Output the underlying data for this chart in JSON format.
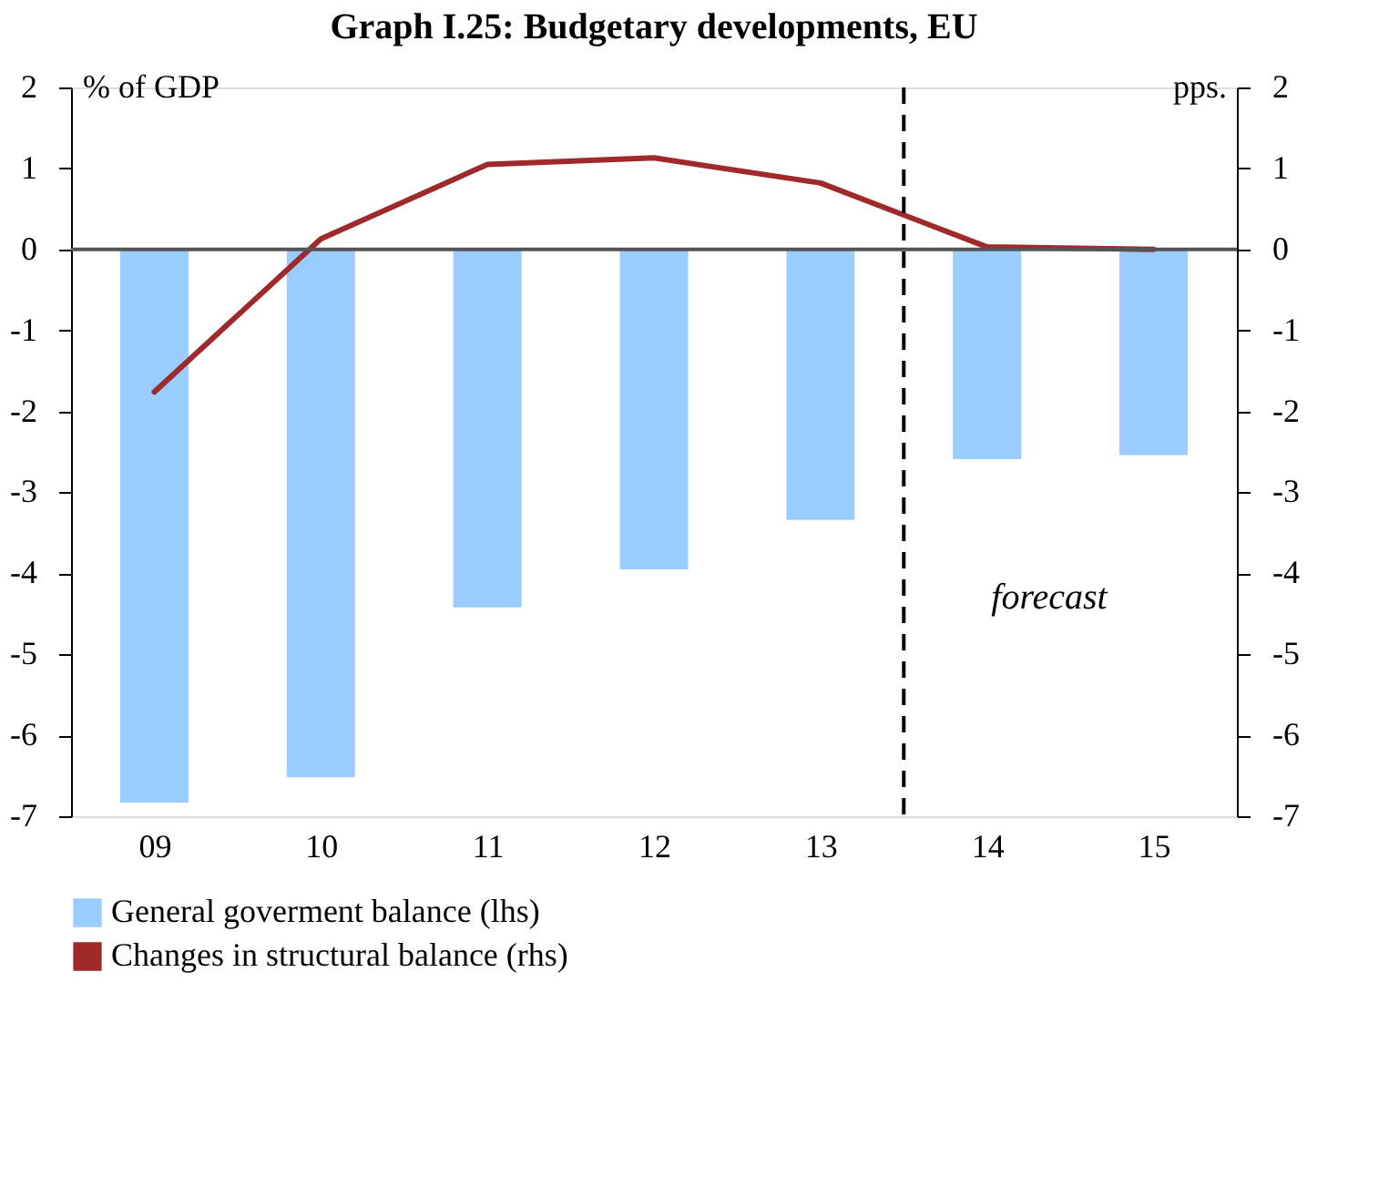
{
  "chart_data": {
    "type": "bar",
    "title": "Graph I.25: Budgetary developments, EU",
    "x": [
      9,
      10,
      11,
      12,
      13,
      14,
      15
    ],
    "xlim": [
      8.5,
      15.5
    ],
    "xticks": [
      {
        "value": 9,
        "label": "09"
      },
      {
        "value": 10,
        "label": "10"
      },
      {
        "value": 11,
        "label": "11"
      },
      {
        "value": 12,
        "label": "12"
      },
      {
        "value": 13,
        "label": "13"
      },
      {
        "value": 14,
        "label": "14"
      },
      {
        "value": 15,
        "label": "15"
      }
    ],
    "ylabel": "% of GDP",
    "y2label": "pps.",
    "ylim": [
      -7,
      2
    ],
    "yticks": [
      -7,
      -6,
      -5,
      -4,
      -3,
      -2,
      -1,
      0,
      1,
      2
    ],
    "y2lim": [
      -7,
      2
    ],
    "y2ticks": [
      -7,
      -6,
      -5,
      -4,
      -3,
      -2,
      -1,
      0,
      1,
      2
    ],
    "series": [
      {
        "name": "General goverment balance (lhs)",
        "type": "bar",
        "color": "#99ccff",
        "values": [
          -6.83,
          -6.52,
          -4.42,
          -3.95,
          -3.34,
          -2.59,
          -2.54
        ]
      },
      {
        "name": "Changes in structural balance (rhs)",
        "type": "line",
        "axis": "y2",
        "color": "#a0292b",
        "values": [
          -1.76,
          0.13,
          1.05,
          1.13,
          0.82,
          0.03,
          0.0
        ]
      }
    ],
    "ref_lines": [
      {
        "axis": "x",
        "value": 13.5,
        "label": "forecast",
        "color": "#000000",
        "line_style": "dashed"
      },
      {
        "axis": "y",
        "value": 0,
        "color": "#555555",
        "line_style": "solid"
      }
    ],
    "grid": false,
    "legend": "bottom"
  }
}
